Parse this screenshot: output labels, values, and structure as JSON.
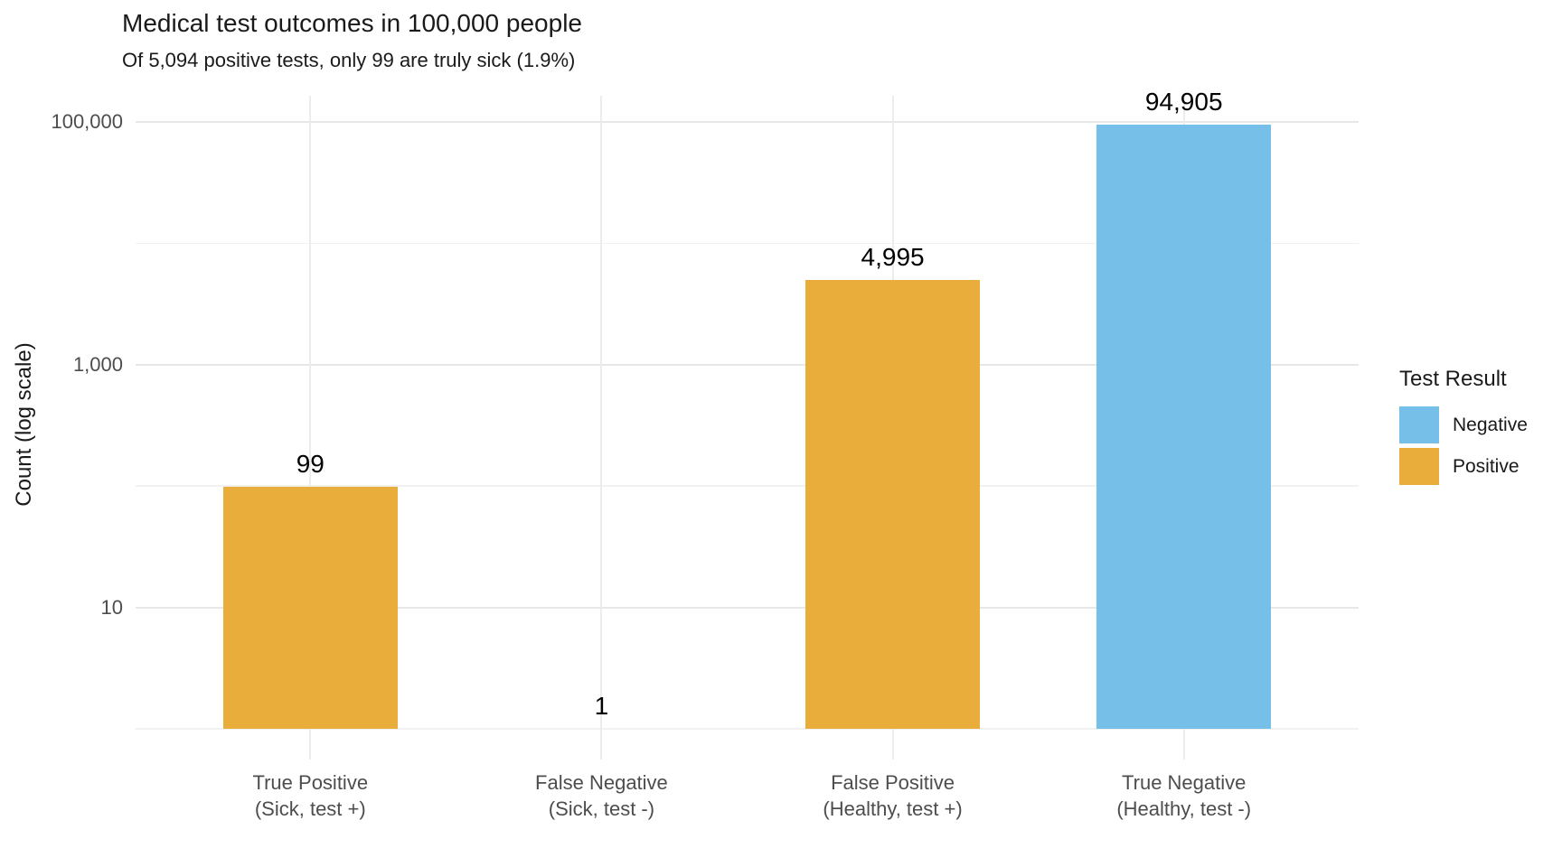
{
  "chart_data": {
    "type": "bar",
    "title": "Medical test outcomes in 100,000 people",
    "subtitle": "Of 5,094 positive tests, only 99 are truly sick (1.9%)",
    "xlabel": "",
    "ylabel": "Count (log scale)",
    "y_scale": "log10",
    "ylim": [
      1,
      100000
    ],
    "grid": true,
    "y_major_ticks": [
      {
        "value": 10,
        "label": "10"
      },
      {
        "value": 1000,
        "label": "1,000"
      },
      {
        "value": 100000,
        "label": "100,000"
      }
    ],
    "y_minor_gridlines": [
      1,
      100,
      10000
    ],
    "categories": [
      "True Positive (Sick, test +)",
      "False Negative (Sick, test -)",
      "False Positive (Healthy, test +)",
      "True Negative (Healthy, test -)"
    ],
    "values": [
      99,
      1,
      4995,
      94905
    ],
    "bars": [
      {
        "category_line1": "True Positive",
        "category_line2": "(Sick, test +)",
        "value": 99,
        "value_label": "99",
        "series": "Positive",
        "color": "#E9AD3C"
      },
      {
        "category_line1": "False Negative",
        "category_line2": "(Sick, test -)",
        "value": 1,
        "value_label": "1",
        "series": "Positive",
        "color": "#E9AD3C"
      },
      {
        "category_line1": "False Positive",
        "category_line2": "(Healthy, test +)",
        "value": 4995,
        "value_label": "4,995",
        "series": "Positive",
        "color": "#E9AD3C"
      },
      {
        "category_line1": "True Negative",
        "category_line2": "(Healthy, test -)",
        "value": 94905,
        "value_label": "94,905",
        "series": "Negative",
        "color": "#76BFE9"
      }
    ],
    "legend_position": "right",
    "legend": {
      "title": "Test Result",
      "entries": [
        {
          "label": "Negative",
          "color": "#76BFE9"
        },
        {
          "label": "Positive",
          "color": "#E9AD3C"
        }
      ]
    },
    "colors": {
      "background": "#FFFFFF",
      "title_text": "#1A1A1A",
      "axis_text": "#4D4D4D",
      "value_label_text": "#000000",
      "major_grid": "#E7E7E7",
      "minor_grid": "#F1F1F1",
      "vertical_grid": "#ECECEC"
    }
  }
}
